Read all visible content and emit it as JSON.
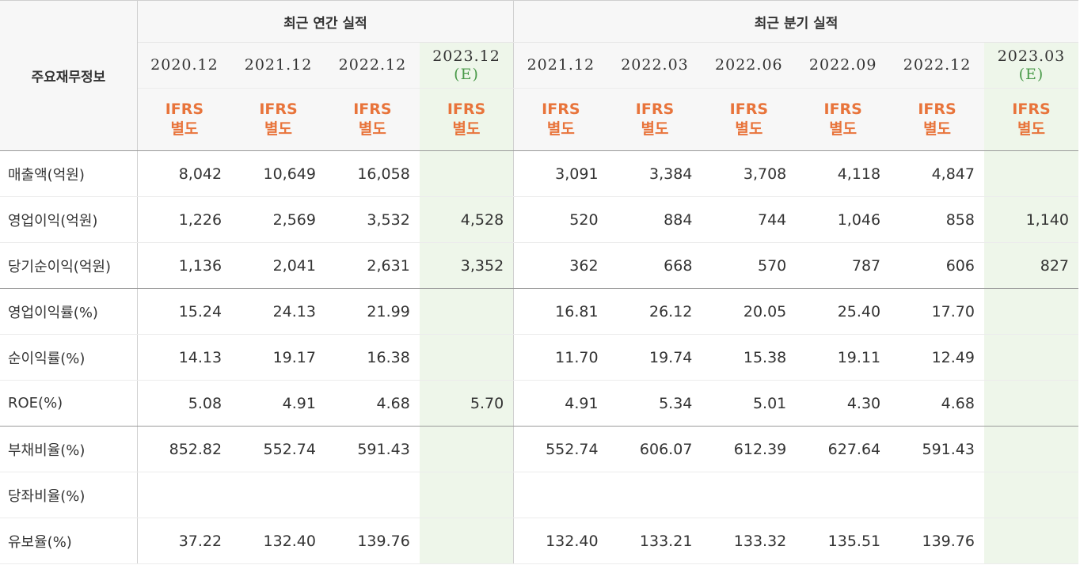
{
  "table": {
    "row_header_label": "주요재무정보",
    "group_annual": "최근 연간 실적",
    "group_quarterly": "최근 분기 실적",
    "columns": [
      {
        "date": "2020.12",
        "est": "",
        "ifrs1": "IFRS",
        "ifrs2": "별도"
      },
      {
        "date": "2021.12",
        "est": "",
        "ifrs1": "IFRS",
        "ifrs2": "별도"
      },
      {
        "date": "2022.12",
        "est": "",
        "ifrs1": "IFRS",
        "ifrs2": "별도"
      },
      {
        "date": "2023.12",
        "est": "(E)",
        "ifrs1": "IFRS",
        "ifrs2": "별도"
      },
      {
        "date": "2021.12",
        "est": "",
        "ifrs1": "IFRS",
        "ifrs2": "별도"
      },
      {
        "date": "2022.03",
        "est": "",
        "ifrs1": "IFRS",
        "ifrs2": "별도"
      },
      {
        "date": "2022.06",
        "est": "",
        "ifrs1": "IFRS",
        "ifrs2": "별도"
      },
      {
        "date": "2022.09",
        "est": "",
        "ifrs1": "IFRS",
        "ifrs2": "별도"
      },
      {
        "date": "2022.12",
        "est": "",
        "ifrs1": "IFRS",
        "ifrs2": "별도"
      },
      {
        "date": "2023.03",
        "est": "(E)",
        "ifrs1": "IFRS",
        "ifrs2": "별도"
      }
    ],
    "rows": [
      {
        "label": "매출액(억원)",
        "values": [
          "8,042",
          "10,649",
          "16,058",
          "",
          "3,091",
          "3,384",
          "3,708",
          "4,118",
          "4,847",
          ""
        ]
      },
      {
        "label": "영업이익(억원)",
        "values": [
          "1,226",
          "2,569",
          "3,532",
          "4,528",
          "520",
          "884",
          "744",
          "1,046",
          "858",
          "1,140"
        ]
      },
      {
        "label": "당기순이익(억원)",
        "values": [
          "1,136",
          "2,041",
          "2,631",
          "3,352",
          "362",
          "668",
          "570",
          "787",
          "606",
          "827"
        ]
      },
      {
        "label": "영업이익률(%)",
        "values": [
          "15.24",
          "24.13",
          "21.99",
          "",
          "16.81",
          "26.12",
          "20.05",
          "25.40",
          "17.70",
          ""
        ]
      },
      {
        "label": "순이익률(%)",
        "values": [
          "14.13",
          "19.17",
          "16.38",
          "",
          "11.70",
          "19.74",
          "15.38",
          "19.11",
          "12.49",
          ""
        ]
      },
      {
        "label": "ROE(%)",
        "values": [
          "5.08",
          "4.91",
          "4.68",
          "5.70",
          "4.91",
          "5.34",
          "5.01",
          "4.30",
          "4.68",
          ""
        ]
      },
      {
        "label": "부채비율(%)",
        "values": [
          "852.82",
          "552.74",
          "591.43",
          "",
          "552.74",
          "606.07",
          "612.39",
          "627.64",
          "591.43",
          ""
        ]
      },
      {
        "label": "당좌비율(%)",
        "values": [
          "",
          "",
          "",
          "",
          "",
          "",
          "",
          "",
          "",
          ""
        ]
      },
      {
        "label": "유보율(%)",
        "values": [
          "37.22",
          "132.40",
          "139.76",
          "",
          "132.40",
          "133.21",
          "133.32",
          "135.51",
          "139.76",
          ""
        ]
      }
    ]
  },
  "colors": {
    "header_bg": "#f7f7f7",
    "estimate_bg": "#eef6ea",
    "ifrs_text": "#e8743b",
    "estimate_text": "#4a9a4a"
  }
}
